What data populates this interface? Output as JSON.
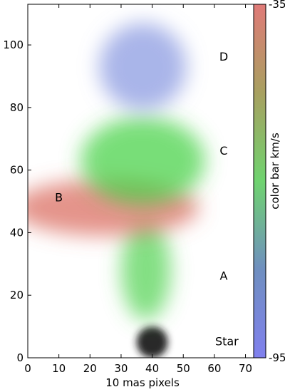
{
  "chart_data": {
    "type": "heatmap",
    "title": "",
    "xlabel": "10 mas pixels",
    "ylabel": "",
    "xlim": [
      0,
      74
    ],
    "ylim": [
      0,
      113
    ],
    "x_ticks": [
      0,
      10,
      20,
      30,
      40,
      50,
      60,
      70
    ],
    "y_ticks": [
      0,
      20,
      40,
      60,
      80,
      100
    ],
    "colorbar": {
      "label": "color bar km/s",
      "range": [
        -95,
        -35
      ],
      "top_label": "-35",
      "bottom_label": "-95",
      "colors_top_to_bottom": [
        "#e07a78",
        "#a8a060",
        "#6fd36f",
        "#6f8fc0",
        "#8080ee"
      ]
    },
    "regions": [
      {
        "name": "Star",
        "color": "#1a1a1a",
        "center": [
          40,
          5
        ],
        "radius": [
          5,
          5
        ]
      },
      {
        "name": "A",
        "color": "#4fd24f",
        "center": [
          38,
          28
        ],
        "radius": [
          8,
          16
        ]
      },
      {
        "name": "B",
        "color": "#d9675a",
        "center": [
          25,
          48
        ],
        "radius": [
          30,
          9
        ]
      },
      {
        "name": "C",
        "color": "#3fd03f",
        "center": [
          37,
          63
        ],
        "radius": [
          20,
          14
        ]
      },
      {
        "name": "D",
        "color": "#8595e0",
        "center": [
          37,
          93
        ],
        "radius": [
          14,
          14
        ]
      }
    ],
    "annotations": [
      {
        "text": "D",
        "x": 63,
        "y": 96
      },
      {
        "text": "C",
        "x": 63,
        "y": 66
      },
      {
        "text": "B",
        "x": 10,
        "y": 51
      },
      {
        "text": "A",
        "x": 63,
        "y": 26
      },
      {
        "text": "Star",
        "x": 64,
        "y": 5
      }
    ]
  }
}
